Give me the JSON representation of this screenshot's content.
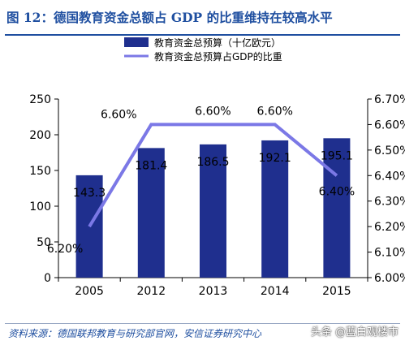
{
  "header": {
    "title": "图 12：德国教育资金总额占 GDP 的比重维持在较高水平"
  },
  "footer": {
    "source": "资料来源：德国联邦教育与研究部官网，安信证券研究中心",
    "watermark": "头条 @蓝白观楼市"
  },
  "colors": {
    "bar": "#1f2f8e",
    "line": "#7b78e6",
    "axis": "#000000"
  },
  "chart_data": {
    "type": "bar",
    "categories": [
      "2005",
      "2012",
      "2013",
      "2014",
      "2015"
    ],
    "series": [
      {
        "name": "教育资金总预算（十亿欧元）",
        "type": "bar",
        "axis": "left",
        "values": [
          143.3,
          181.4,
          186.5,
          192.1,
          195.1
        ],
        "labels": [
          "143.3",
          "181.4",
          "186.5",
          "192.1",
          "195.1"
        ]
      },
      {
        "name": "教育资金总预算占GDP的比重",
        "type": "line",
        "axis": "right",
        "values": [
          6.2,
          6.6,
          6.6,
          6.6,
          6.4
        ],
        "labels": [
          "6.20%",
          "6.60%",
          "6.60%",
          "6.60%",
          "6.40%"
        ]
      }
    ],
    "y_left": {
      "lim": [
        0,
        250
      ],
      "ticks": [
        "0",
        "50",
        "100",
        "150",
        "200",
        "250"
      ]
    },
    "y_right": {
      "lim": [
        6.0,
        6.7
      ],
      "ticks": [
        "6.00%",
        "6.10%",
        "6.20%",
        "6.30%",
        "6.40%",
        "6.50%",
        "6.60%",
        "6.70%"
      ]
    },
    "legend": "top-center",
    "grid": false
  }
}
